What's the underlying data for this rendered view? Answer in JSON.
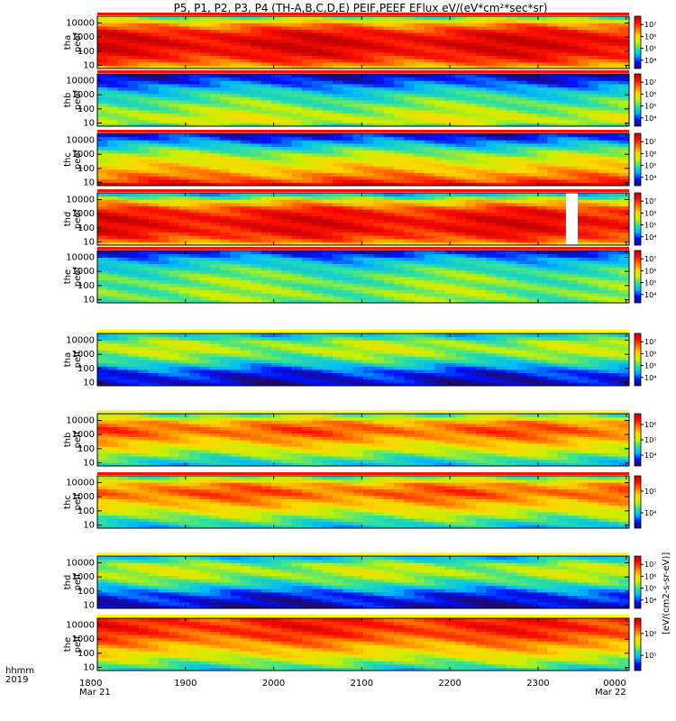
{
  "chart_data": {
    "type": "heatmap",
    "title": "P5, P1, P2, P3, P4 (TH-A,B,C,D,E) PEIF,PEEF EFlux eV/(eV*cm²*sec*sr)",
    "x_axis": {
      "label_line1": "hhmm",
      "label_line2": "2019",
      "ticks": [
        "1800",
        "1900",
        "2000",
        "2100",
        "2200",
        "2300",
        "0000"
      ],
      "tick_dates": [
        "Mar 21",
        "",
        "",
        "",
        "",
        "",
        "Mar 22"
      ],
      "range_minutes": [
        0,
        362
      ]
    },
    "y_axis": {
      "scale": "log",
      "ticks": [
        "10",
        "100",
        "1000",
        "10000"
      ],
      "range": [
        6,
        30000
      ]
    },
    "colorbar_label": "[eV/(cm2-s-sr-eV)]",
    "colorscale": [
      "#1e0b6a",
      "#0010ff",
      "#00b8ff",
      "#2ee0a0",
      "#c8f000",
      "#ffd800",
      "#ff7800",
      "#ff1000",
      "#c40000"
    ],
    "panels": [
      {
        "name": "tha peef",
        "label_line1": "tha",
        "label_line2": "peef",
        "colorbar_ticks": [
          "10⁴",
          "10⁵",
          "10⁶",
          "10⁷"
        ],
        "profile": [
          [
            8,
            0.62
          ],
          [
            15,
            0.78
          ],
          [
            60,
            0.9
          ],
          [
            400,
            0.95
          ],
          [
            2000,
            0.9
          ],
          [
            8000,
            0.72
          ],
          [
            20000,
            0.45
          ]
        ],
        "gaps": []
      },
      {
        "name": "thb peef",
        "label_line1": "thb",
        "label_line2": "peef",
        "colorbar_ticks": [
          "10⁴",
          "10⁵",
          "10⁶",
          "10⁷"
        ],
        "profile": [
          [
            8,
            0.42
          ],
          [
            15,
            0.55
          ],
          [
            60,
            0.48
          ],
          [
            400,
            0.4
          ],
          [
            2000,
            0.3
          ],
          [
            8000,
            0.16
          ],
          [
            20000,
            0.08
          ]
        ],
        "gaps": []
      },
      {
        "name": "thc peef",
        "label_line1": "thc",
        "label_line2": "peef",
        "colorbar_ticks": [
          "10⁴",
          "10⁵",
          "10⁶",
          "10⁷"
        ],
        "profile": [
          [
            8,
            0.95
          ],
          [
            15,
            0.8
          ],
          [
            60,
            0.68
          ],
          [
            400,
            0.55
          ],
          [
            2000,
            0.4
          ],
          [
            8000,
            0.22
          ],
          [
            20000,
            0.1
          ]
        ],
        "gaps": []
      },
      {
        "name": "thd peef",
        "label_line1": "thd",
        "label_line2": "peef",
        "colorbar_ticks": [
          "10⁴",
          "10⁵",
          "10⁶",
          "10⁷"
        ],
        "profile": [
          [
            8,
            0.62
          ],
          [
            15,
            0.8
          ],
          [
            60,
            0.9
          ],
          [
            400,
            0.92
          ],
          [
            2000,
            0.85
          ],
          [
            8000,
            0.62
          ],
          [
            20000,
            0.3
          ]
        ],
        "gaps": [
          [
            319,
            327
          ]
        ]
      },
      {
        "name": "the peef",
        "label_line1": "the",
        "label_line2": "peef",
        "colorbar_ticks": [
          "10⁴",
          "10⁵",
          "10⁶",
          "10⁷"
        ],
        "profile": [
          [
            8,
            0.42
          ],
          [
            15,
            0.45
          ],
          [
            60,
            0.44
          ],
          [
            400,
            0.42
          ],
          [
            2000,
            0.35
          ],
          [
            8000,
            0.25
          ],
          [
            20000,
            0.12
          ]
        ],
        "gaps": []
      },
      {
        "name": "tha peif",
        "label_line1": "tha",
        "label_line2": "peif",
        "colorbar_ticks": [
          "10⁴",
          "10⁵",
          "10⁶",
          "10⁷"
        ],
        "profile": [
          [
            8,
            0.06
          ],
          [
            15,
            0.08
          ],
          [
            60,
            0.14
          ],
          [
            400,
            0.38
          ],
          [
            2000,
            0.5
          ],
          [
            8000,
            0.46
          ],
          [
            20000,
            0.3
          ]
        ],
        "gaps": []
      },
      {
        "name": "thb peif",
        "label_line1": "thb",
        "label_line2": "peif",
        "colorbar_ticks": [
          "10⁴",
          "10⁵",
          "10⁶"
        ],
        "profile": [
          [
            8,
            0.3
          ],
          [
            15,
            0.35
          ],
          [
            60,
            0.5
          ],
          [
            400,
            0.68
          ],
          [
            2000,
            0.8
          ],
          [
            8000,
            0.7
          ],
          [
            20000,
            0.45
          ]
        ],
        "gaps": []
      },
      {
        "name": "thc peif",
        "label_line1": "thc",
        "label_line2": "peif",
        "colorbar_ticks": [
          "10⁴",
          "10⁵"
        ],
        "profile": [
          [
            8,
            0.3
          ],
          [
            15,
            0.35
          ],
          [
            60,
            0.5
          ],
          [
            400,
            0.68
          ],
          [
            2000,
            0.8
          ],
          [
            8000,
            0.7
          ],
          [
            20000,
            0.45
          ]
        ],
        "gaps": []
      },
      {
        "name": "thd peif",
        "label_line1": "thd",
        "label_line2": "peif",
        "colorbar_ticks": [
          "10⁴",
          "10⁵",
          "10⁶",
          "10⁷"
        ],
        "profile": [
          [
            8,
            0.06
          ],
          [
            15,
            0.08
          ],
          [
            60,
            0.14
          ],
          [
            400,
            0.38
          ],
          [
            2000,
            0.5
          ],
          [
            8000,
            0.46
          ],
          [
            20000,
            0.3
          ]
        ],
        "gaps": []
      },
      {
        "name": "the peif",
        "label_line1": "the",
        "label_line2": "peif",
        "colorbar_ticks": [
          "10⁵",
          "10⁶"
        ],
        "profile": [
          [
            8,
            0.32
          ],
          [
            15,
            0.4
          ],
          [
            60,
            0.55
          ],
          [
            400,
            0.7
          ],
          [
            2000,
            0.82
          ],
          [
            8000,
            0.86
          ],
          [
            20000,
            0.85
          ]
        ],
        "gaps": []
      }
    ]
  }
}
